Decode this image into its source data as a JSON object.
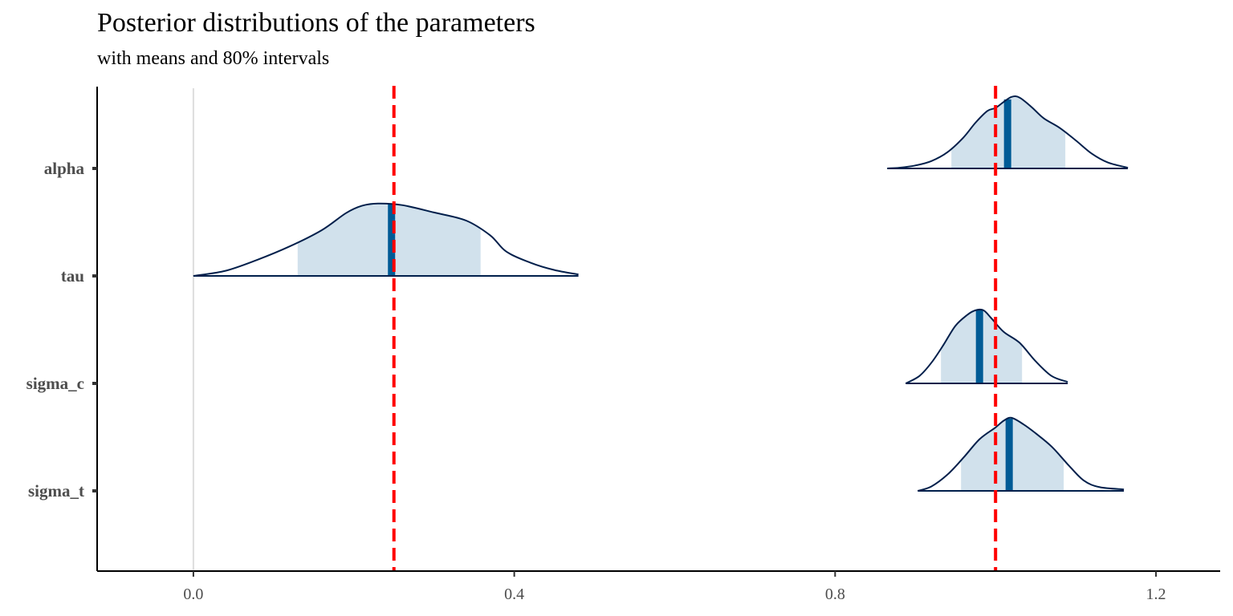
{
  "chart_data": {
    "type": "area",
    "title": "Posterior distributions of the parameters",
    "subtitle": "with means and 80% intervals",
    "xlabel": "",
    "ylabel": "",
    "xlim": [
      -0.12,
      1.28
    ],
    "x_ticks": [
      0.0,
      0.4,
      0.8,
      1.2
    ],
    "x_tick_labels": [
      "0.0",
      "0.4",
      "0.8",
      "1.2"
    ],
    "zero_line": true,
    "reference_lines": [
      0.25,
      1.0
    ],
    "reference_line_color": "#ff0000",
    "fill_color": "#d1e1ec",
    "line_color": "#011f4b",
    "mean_color": "#005b96",
    "parameters": [
      {
        "name": "alpha",
        "mean": 1.015,
        "interval_80": [
          0.945,
          1.087
        ],
        "density": [
          [
            0.865,
            0.0
          ],
          [
            0.88,
            0.01
          ],
          [
            0.9,
            0.04
          ],
          [
            0.92,
            0.1
          ],
          [
            0.94,
            0.22
          ],
          [
            0.96,
            0.42
          ],
          [
            0.975,
            0.62
          ],
          [
            0.99,
            0.78
          ],
          [
            1.0,
            0.82
          ],
          [
            1.01,
            0.9
          ],
          [
            1.02,
            0.97
          ],
          [
            1.03,
            0.96
          ],
          [
            1.045,
            0.83
          ],
          [
            1.06,
            0.68
          ],
          [
            1.08,
            0.55
          ],
          [
            1.1,
            0.38
          ],
          [
            1.12,
            0.2
          ],
          [
            1.14,
            0.08
          ],
          [
            1.165,
            0.01
          ]
        ]
      },
      {
        "name": "tau",
        "mean": 0.247,
        "interval_80": [
          0.13,
          0.358
        ],
        "density": [
          [
            0.0,
            0.0
          ],
          [
            0.04,
            0.07
          ],
          [
            0.08,
            0.22
          ],
          [
            0.12,
            0.4
          ],
          [
            0.16,
            0.62
          ],
          [
            0.19,
            0.85
          ],
          [
            0.21,
            0.95
          ],
          [
            0.23,
            0.98
          ],
          [
            0.26,
            0.96
          ],
          [
            0.3,
            0.86
          ],
          [
            0.34,
            0.75
          ],
          [
            0.37,
            0.55
          ],
          [
            0.39,
            0.33
          ],
          [
            0.42,
            0.18
          ],
          [
            0.45,
            0.08
          ],
          [
            0.48,
            0.02
          ]
        ]
      },
      {
        "name": "sigma_c",
        "mean": 0.98,
        "interval_80": [
          0.932,
          1.033
        ],
        "density": [
          [
            0.888,
            0.0
          ],
          [
            0.905,
            0.1
          ],
          [
            0.92,
            0.28
          ],
          [
            0.935,
            0.52
          ],
          [
            0.95,
            0.78
          ],
          [
            0.965,
            0.93
          ],
          [
            0.975,
            0.99
          ],
          [
            0.985,
            0.99
          ],
          [
            0.995,
            0.88
          ],
          [
            1.01,
            0.7
          ],
          [
            1.03,
            0.55
          ],
          [
            1.05,
            0.3
          ],
          [
            1.07,
            0.1
          ],
          [
            1.09,
            0.02
          ]
        ]
      },
      {
        "name": "sigma_t",
        "mean": 1.017,
        "interval_80": [
          0.957,
          1.085
        ],
        "density": [
          [
            0.903,
            0.0
          ],
          [
            0.92,
            0.06
          ],
          [
            0.94,
            0.22
          ],
          [
            0.96,
            0.45
          ],
          [
            0.98,
            0.7
          ],
          [
            1.0,
            0.86
          ],
          [
            1.01,
            0.95
          ],
          [
            1.02,
            0.99
          ],
          [
            1.035,
            0.9
          ],
          [
            1.05,
            0.78
          ],
          [
            1.07,
            0.6
          ],
          [
            1.09,
            0.36
          ],
          [
            1.11,
            0.14
          ],
          [
            1.13,
            0.05
          ],
          [
            1.16,
            0.02
          ]
        ]
      }
    ]
  }
}
